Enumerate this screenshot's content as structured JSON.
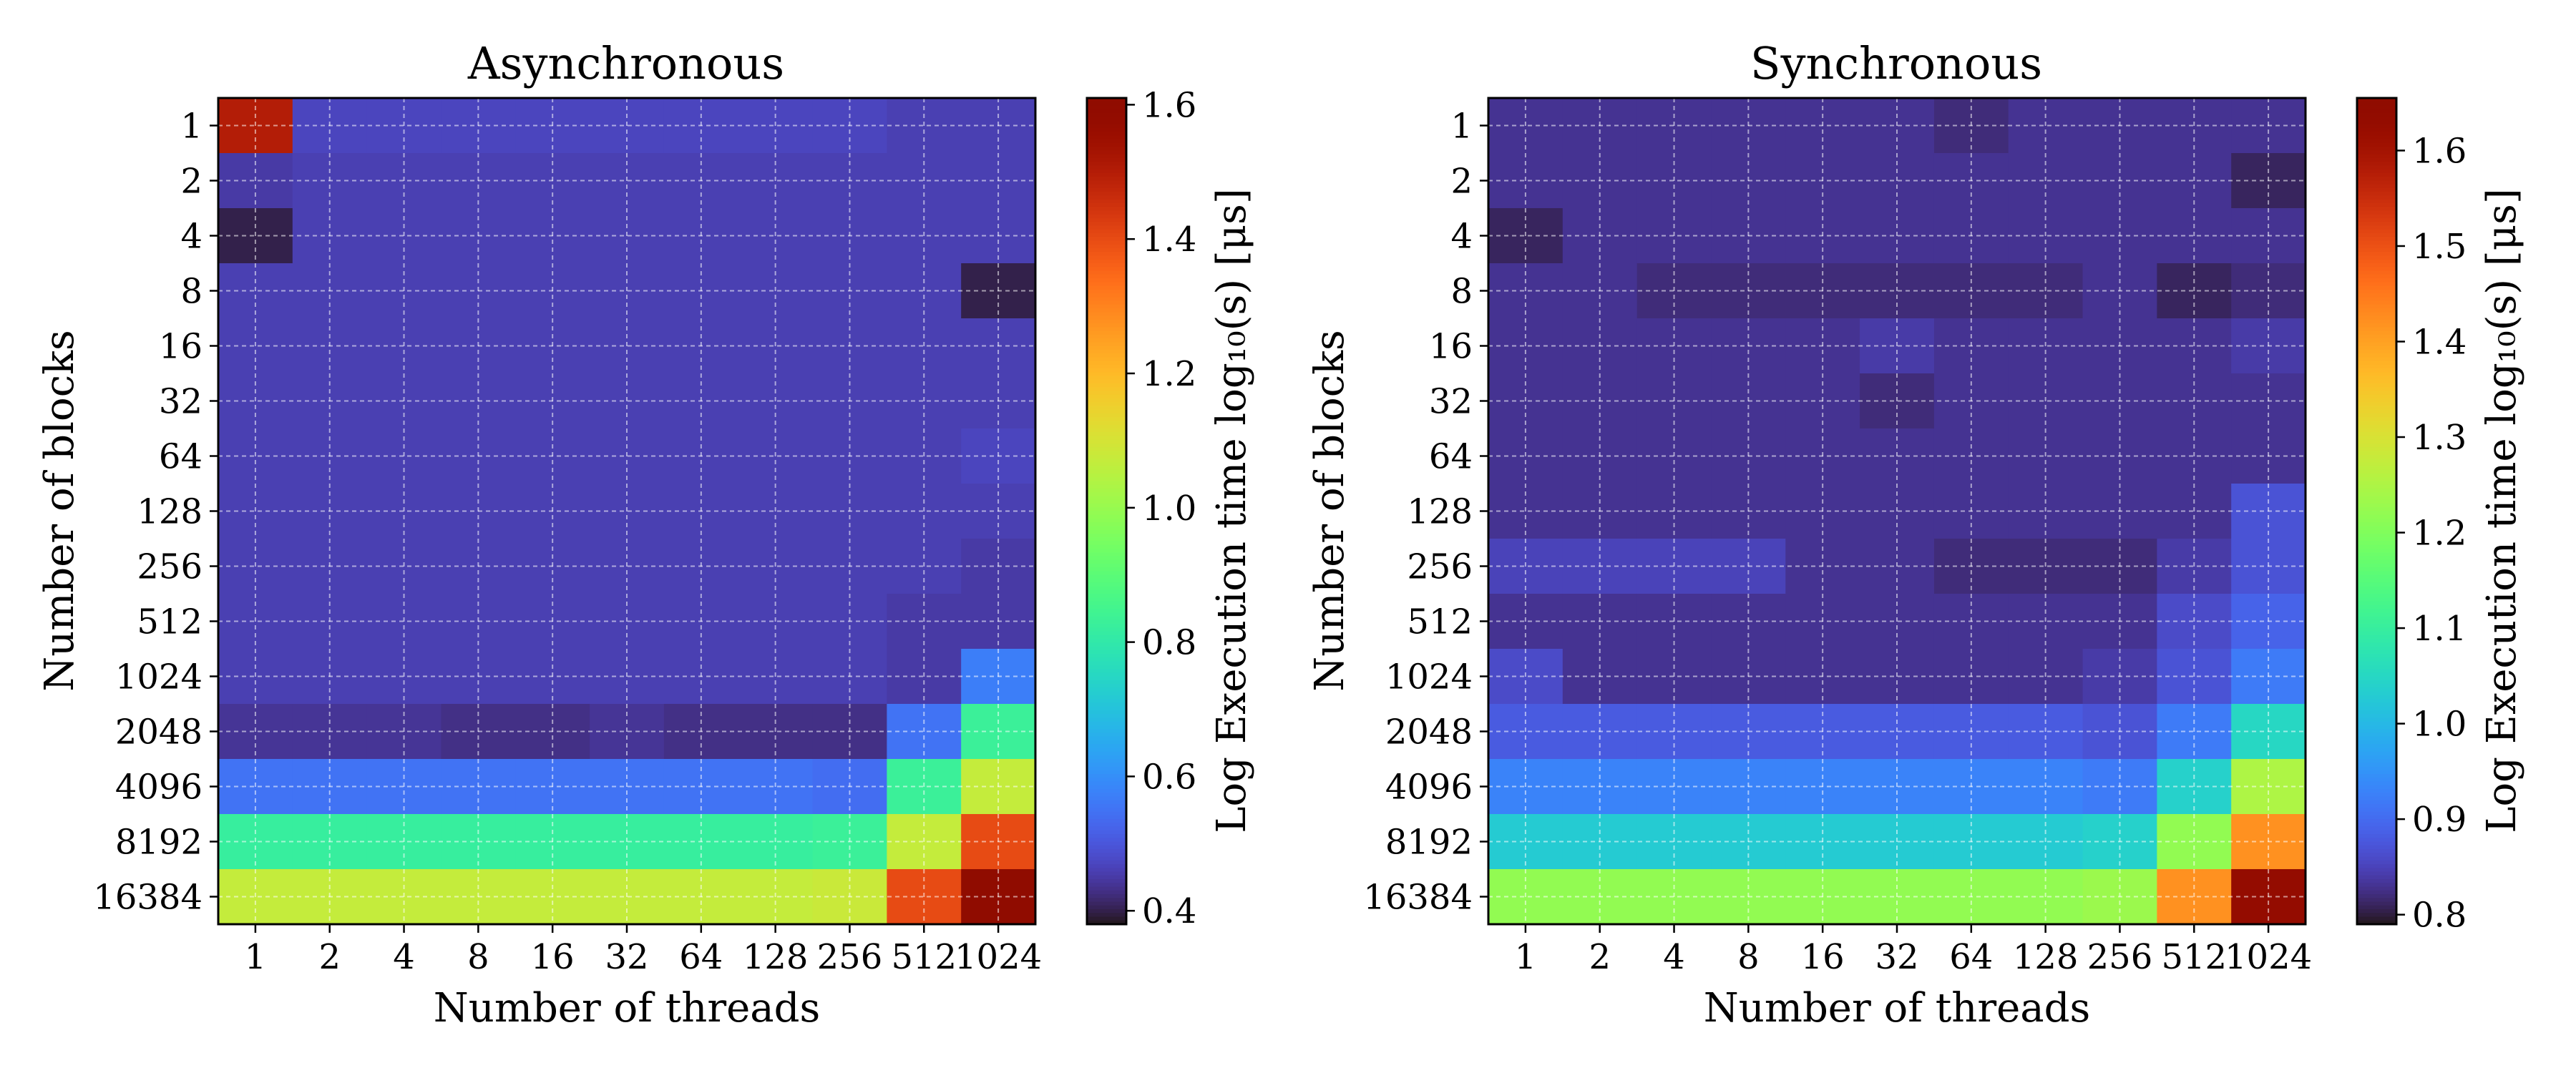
{
  "chart_data": [
    {
      "type": "heatmap",
      "title": "Asynchronous",
      "xlabel": "Number of threads",
      "ylabel": "Number of blocks",
      "x_categories": [
        "1",
        "2",
        "4",
        "8",
        "16",
        "32",
        "64",
        "128",
        "256",
        "512",
        "1024"
      ],
      "y_categories": [
        "1",
        "2",
        "4",
        "8",
        "16",
        "32",
        "64",
        "128",
        "256",
        "512",
        "1024",
        "2048",
        "4096",
        "8192",
        "16384"
      ],
      "colorbar": {
        "label": "Log Execution time log₁₀(s) [μs]",
        "min": 0.38,
        "max": 1.61,
        "ticks": [
          "0.4",
          "0.6",
          "0.8",
          "1.0",
          "1.2",
          "1.4",
          "1.6"
        ],
        "colormap": "turbo"
      },
      "grid": true,
      "values": [
        [
          1.5,
          0.47,
          0.47,
          0.47,
          0.47,
          0.47,
          0.47,
          0.47,
          0.47,
          0.46,
          0.46
        ],
        [
          0.45,
          0.46,
          0.46,
          0.46,
          0.46,
          0.46,
          0.46,
          0.46,
          0.46,
          0.46,
          0.46
        ],
        [
          0.4,
          0.46,
          0.46,
          0.46,
          0.46,
          0.46,
          0.46,
          0.46,
          0.46,
          0.46,
          0.46
        ],
        [
          0.46,
          0.46,
          0.46,
          0.46,
          0.46,
          0.46,
          0.46,
          0.46,
          0.46,
          0.46,
          0.4
        ],
        [
          0.46,
          0.46,
          0.46,
          0.46,
          0.46,
          0.46,
          0.46,
          0.46,
          0.46,
          0.46,
          0.46
        ],
        [
          0.46,
          0.46,
          0.46,
          0.46,
          0.46,
          0.46,
          0.46,
          0.46,
          0.46,
          0.46,
          0.46
        ],
        [
          0.46,
          0.46,
          0.46,
          0.46,
          0.46,
          0.46,
          0.46,
          0.46,
          0.46,
          0.46,
          0.47
        ],
        [
          0.46,
          0.46,
          0.46,
          0.46,
          0.46,
          0.46,
          0.46,
          0.46,
          0.46,
          0.46,
          0.46
        ],
        [
          0.46,
          0.46,
          0.46,
          0.46,
          0.46,
          0.46,
          0.46,
          0.46,
          0.46,
          0.46,
          0.45
        ],
        [
          0.46,
          0.46,
          0.46,
          0.46,
          0.46,
          0.46,
          0.46,
          0.46,
          0.46,
          0.45,
          0.45
        ],
        [
          0.46,
          0.46,
          0.46,
          0.46,
          0.46,
          0.46,
          0.46,
          0.46,
          0.46,
          0.45,
          0.57
        ],
        [
          0.44,
          0.44,
          0.44,
          0.43,
          0.43,
          0.44,
          0.43,
          0.43,
          0.43,
          0.55,
          0.83
        ],
        [
          0.55,
          0.55,
          0.55,
          0.55,
          0.55,
          0.55,
          0.55,
          0.55,
          0.54,
          0.83,
          1.07
        ],
        [
          0.82,
          0.82,
          0.82,
          0.82,
          0.82,
          0.82,
          0.82,
          0.82,
          0.83,
          1.07,
          1.4
        ],
        [
          1.07,
          1.07,
          1.07,
          1.07,
          1.07,
          1.07,
          1.07,
          1.07,
          1.08,
          1.4,
          1.6
        ]
      ]
    },
    {
      "type": "heatmap",
      "title": "Synchronous",
      "xlabel": "Number of threads",
      "ylabel": "Number of blocks",
      "x_categories": [
        "1",
        "2",
        "4",
        "8",
        "16",
        "32",
        "64",
        "128",
        "256",
        "512",
        "1024"
      ],
      "y_categories": [
        "1",
        "2",
        "4",
        "8",
        "16",
        "32",
        "64",
        "128",
        "256",
        "512",
        "1024",
        "2048",
        "4096",
        "8192",
        "16384"
      ],
      "colorbar": {
        "label": "Log Execution time log₁₀(s) [μs]",
        "min": 0.79,
        "max": 1.655,
        "ticks": [
          "0.8",
          "0.9",
          "1.0",
          "1.1",
          "1.2",
          "1.3",
          "1.4",
          "1.5",
          "1.6"
        ],
        "colormap": "turbo"
      },
      "grid": true,
      "values": [
        [
          0.83,
          0.83,
          0.83,
          0.83,
          0.83,
          0.83,
          0.82,
          0.83,
          0.83,
          0.83,
          0.83
        ],
        [
          0.83,
          0.83,
          0.83,
          0.83,
          0.83,
          0.83,
          0.83,
          0.83,
          0.83,
          0.83,
          0.81
        ],
        [
          0.81,
          0.83,
          0.83,
          0.83,
          0.83,
          0.83,
          0.83,
          0.83,
          0.83,
          0.83,
          0.83
        ],
        [
          0.83,
          0.83,
          0.82,
          0.82,
          0.82,
          0.82,
          0.82,
          0.82,
          0.83,
          0.81,
          0.82
        ],
        [
          0.83,
          0.83,
          0.83,
          0.83,
          0.83,
          0.84,
          0.83,
          0.83,
          0.83,
          0.83,
          0.84
        ],
        [
          0.83,
          0.83,
          0.83,
          0.83,
          0.83,
          0.82,
          0.83,
          0.83,
          0.83,
          0.83,
          0.83
        ],
        [
          0.83,
          0.83,
          0.83,
          0.83,
          0.83,
          0.83,
          0.83,
          0.83,
          0.83,
          0.83,
          0.83
        ],
        [
          0.83,
          0.83,
          0.83,
          0.83,
          0.83,
          0.83,
          0.83,
          0.83,
          0.83,
          0.83,
          0.87
        ],
        [
          0.85,
          0.85,
          0.85,
          0.85,
          0.83,
          0.83,
          0.82,
          0.82,
          0.82,
          0.84,
          0.87
        ],
        [
          0.83,
          0.83,
          0.83,
          0.83,
          0.83,
          0.83,
          0.83,
          0.83,
          0.83,
          0.86,
          0.89
        ],
        [
          0.86,
          0.83,
          0.83,
          0.83,
          0.83,
          0.83,
          0.83,
          0.83,
          0.84,
          0.87,
          0.92
        ],
        [
          0.88,
          0.88,
          0.88,
          0.88,
          0.88,
          0.88,
          0.88,
          0.88,
          0.87,
          0.92,
          1.05
        ],
        [
          0.93,
          0.93,
          0.93,
          0.93,
          0.93,
          0.93,
          0.93,
          0.93,
          0.92,
          1.04,
          1.25
        ],
        [
          1.03,
          1.03,
          1.03,
          1.03,
          1.03,
          1.03,
          1.03,
          1.03,
          1.04,
          1.22,
          1.42
        ],
        [
          1.22,
          1.22,
          1.22,
          1.22,
          1.22,
          1.22,
          1.22,
          1.22,
          1.23,
          1.42,
          1.63
        ]
      ]
    }
  ]
}
